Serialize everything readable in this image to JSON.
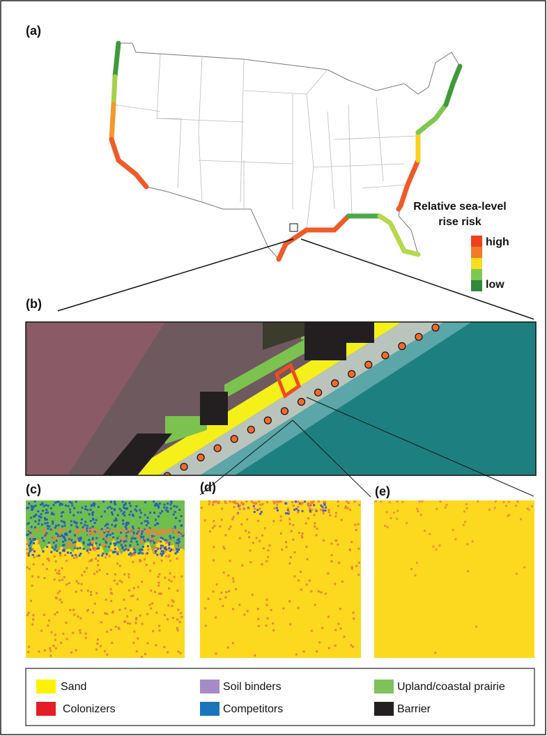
{
  "panels": {
    "a": "(a)",
    "b": "(b)",
    "c": "(c)",
    "d": "(d)",
    "e": "(e)"
  },
  "risk_legend": {
    "title_line1": "Relative sea-level",
    "title_line2": "rise risk",
    "high": "high",
    "low": "low"
  },
  "legend": {
    "items": [
      "Sand",
      "Soil binders",
      "Upland/coastal prairie",
      "Colonizers",
      "Competitors",
      "Barrier"
    ]
  }
}
